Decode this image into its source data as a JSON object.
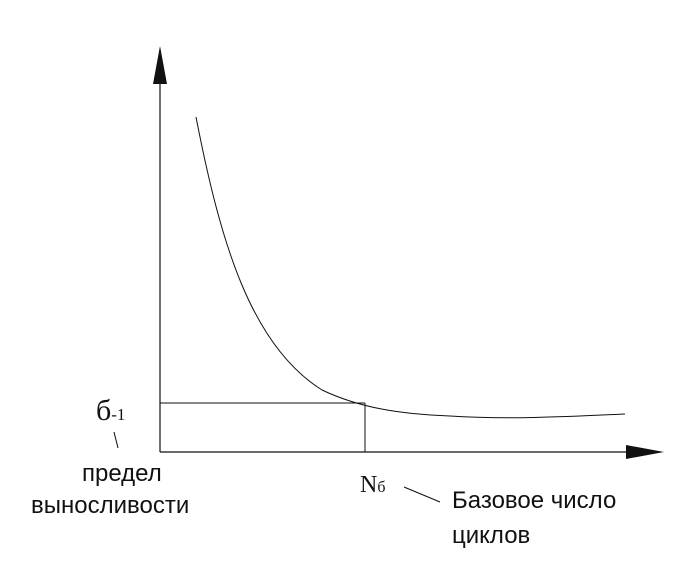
{
  "diagram": {
    "y_marker": {
      "symbol": "б",
      "subscript": "-1"
    },
    "y_marker_caption": {
      "line1": "предел",
      "line2": "выносливости"
    },
    "x_marker": {
      "symbol": "N",
      "subscript": "б"
    },
    "x_marker_caption": {
      "line1": "Базовое число",
      "line2": "циклов"
    },
    "colors": {
      "stroke": "#111111",
      "background": "#ffffff"
    }
  }
}
